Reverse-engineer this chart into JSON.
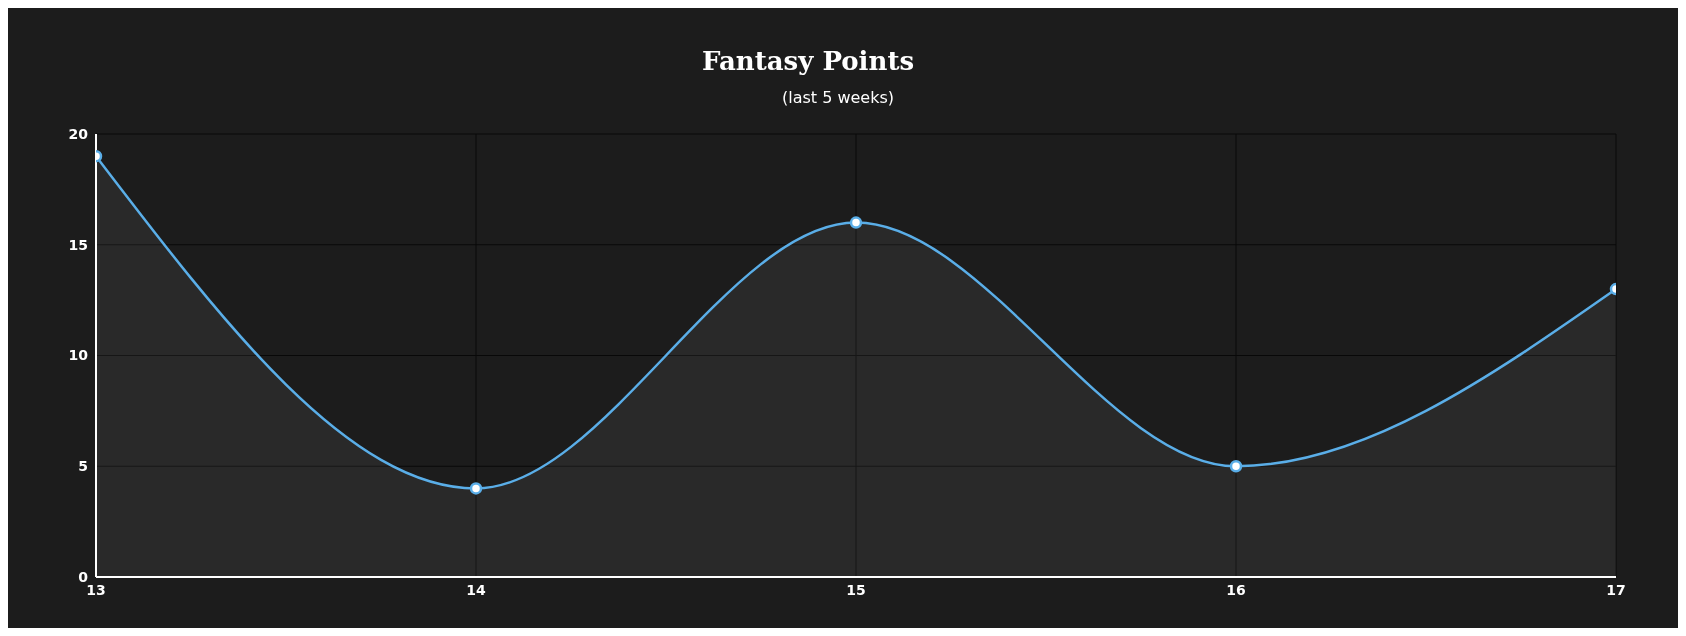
{
  "chart_data": {
    "type": "area",
    "title": "Fantasy Points",
    "subtitle": "(last 5 weeks)",
    "x": [
      13,
      14,
      15,
      16,
      17
    ],
    "series": [
      {
        "color": "#5aaee8",
        "values": [
          19,
          4,
          16,
          5,
          13
        ]
      }
    ],
    "xlim": [
      13,
      17
    ],
    "xticks": [
      13,
      14,
      15,
      16,
      17
    ],
    "ylim": [
      0,
      20
    ],
    "yticks": [
      0,
      5,
      10,
      15,
      20
    ],
    "grid": true,
    "marker": "circle"
  }
}
